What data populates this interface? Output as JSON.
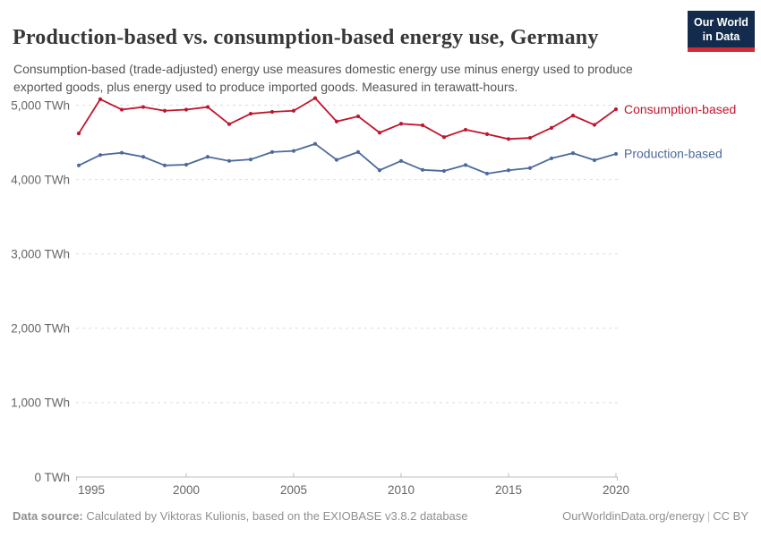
{
  "header": {
    "title": "Production-based vs. consumption-based energy use, Germany",
    "subtitle": "Consumption-based (trade-adjusted) energy use measures domestic energy use minus energy used to produce exported goods, plus energy used to produce imported goods. Measured in terawatt-hours.",
    "logo": {
      "line1": "Our World",
      "line2": "in Data",
      "bg_color": "#132c4d",
      "accent_color": "#d12b35"
    }
  },
  "chart_data": {
    "type": "line",
    "title": "Production-based vs. consumption-based energy use, Germany",
    "x": [
      1995,
      1996,
      1997,
      1998,
      1999,
      2000,
      2001,
      2002,
      2003,
      2004,
      2005,
      2006,
      2007,
      2008,
      2009,
      2010,
      2011,
      2012,
      2013,
      2014,
      2015,
      2016,
      2017,
      2018,
      2019,
      2020
    ],
    "series": [
      {
        "name": "Consumption-based",
        "color": "#c0152c",
        "values": [
          4620,
          5080,
          4940,
          4975,
          4925,
          4940,
          4975,
          4745,
          4885,
          4910,
          4925,
          5095,
          4780,
          4850,
          4630,
          4750,
          4730,
          4570,
          4670,
          4610,
          4545,
          4560,
          4695,
          4860,
          4735,
          4945
        ]
      },
      {
        "name": "Production-based",
        "color": "#4c6a9c",
        "values": [
          4190,
          4330,
          4360,
          4305,
          4190,
          4200,
          4305,
          4250,
          4270,
          4370,
          4385,
          4480,
          4265,
          4370,
          4125,
          4250,
          4130,
          4115,
          4195,
          4080,
          4125,
          4155,
          4285,
          4355,
          4260,
          4345
        ]
      }
    ],
    "xlabel": "",
    "ylabel": "TWh",
    "ylim": [
      0,
      5300
    ],
    "y_ticks": [
      0,
      1000,
      2000,
      3000,
      4000,
      5000
    ],
    "y_tick_labels": [
      "0 TWh",
      "1,000 TWh",
      "2,000 TWh",
      "3,000 TWh",
      "4,000 TWh",
      "5,000 TWh"
    ],
    "x_ticks": [
      1995,
      2000,
      2005,
      2010,
      2015,
      2020
    ],
    "x_tick_labels": [
      "1995",
      "2000",
      "2005",
      "2010",
      "2015",
      "2020"
    ],
    "grid": "horizontal-dashed",
    "legend_position": "right-end-labels",
    "axis_text_color": "#666666",
    "grid_color": "#dcdcdc",
    "axis_line_color": "#bcbcbc"
  },
  "footer": {
    "source_label": "Data source:",
    "source_text": "Calculated by Viktoras Kulionis, based on the EXIOBASE v3.8.2 database",
    "site": "OurWorldinData.org/energy",
    "separator": "|",
    "license": "CC BY"
  }
}
